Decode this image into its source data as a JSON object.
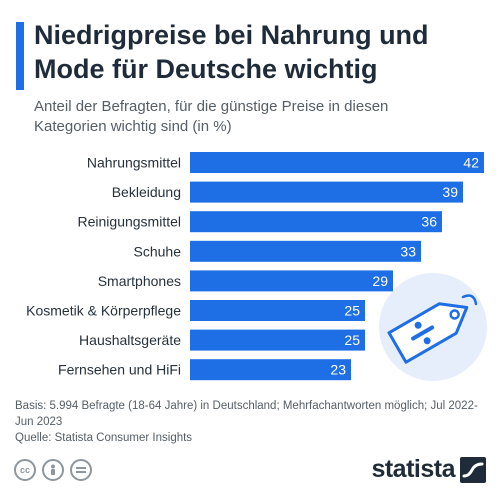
{
  "header": {
    "title": "Niedrigpreise bei Nahrung und Mode für Deutsche wichtig",
    "subtitle": "Anteil der Befragten, für die günstige Preise in diesen Kategorien wichtig sind (in %)"
  },
  "chart_data": {
    "type": "bar",
    "orientation": "horizontal",
    "categories": [
      "Nahrungsmittel",
      "Bekleidung",
      "Reinigungsmittel",
      "Schuhe",
      "Smartphones",
      "Kosmetik & Körperpflege",
      "Haushaltsgeräte",
      "Fernsehen und HiFi"
    ],
    "values": [
      42,
      39,
      36,
      33,
      29,
      25,
      25,
      23
    ],
    "xlim": [
      0,
      42
    ],
    "grid": false,
    "bar_color": "#1e6fe6"
  },
  "footer": {
    "basis": "Basis: 5.994 Befragte (18-64 Jahre) in Deutschland; Mehrfachantworten möglich; Jul 2022-Jun 2023",
    "source": "Quelle: Statista Consumer Insights",
    "brand": "statista"
  },
  "icons": [
    "cc-icon",
    "person-icon",
    "equals-icon",
    "price-tag-icon",
    "statista-logo-icon"
  ],
  "colors": {
    "accent": "#1e6fe6",
    "title": "#1f2b38",
    "illustration_bg": "#e6eefc"
  }
}
